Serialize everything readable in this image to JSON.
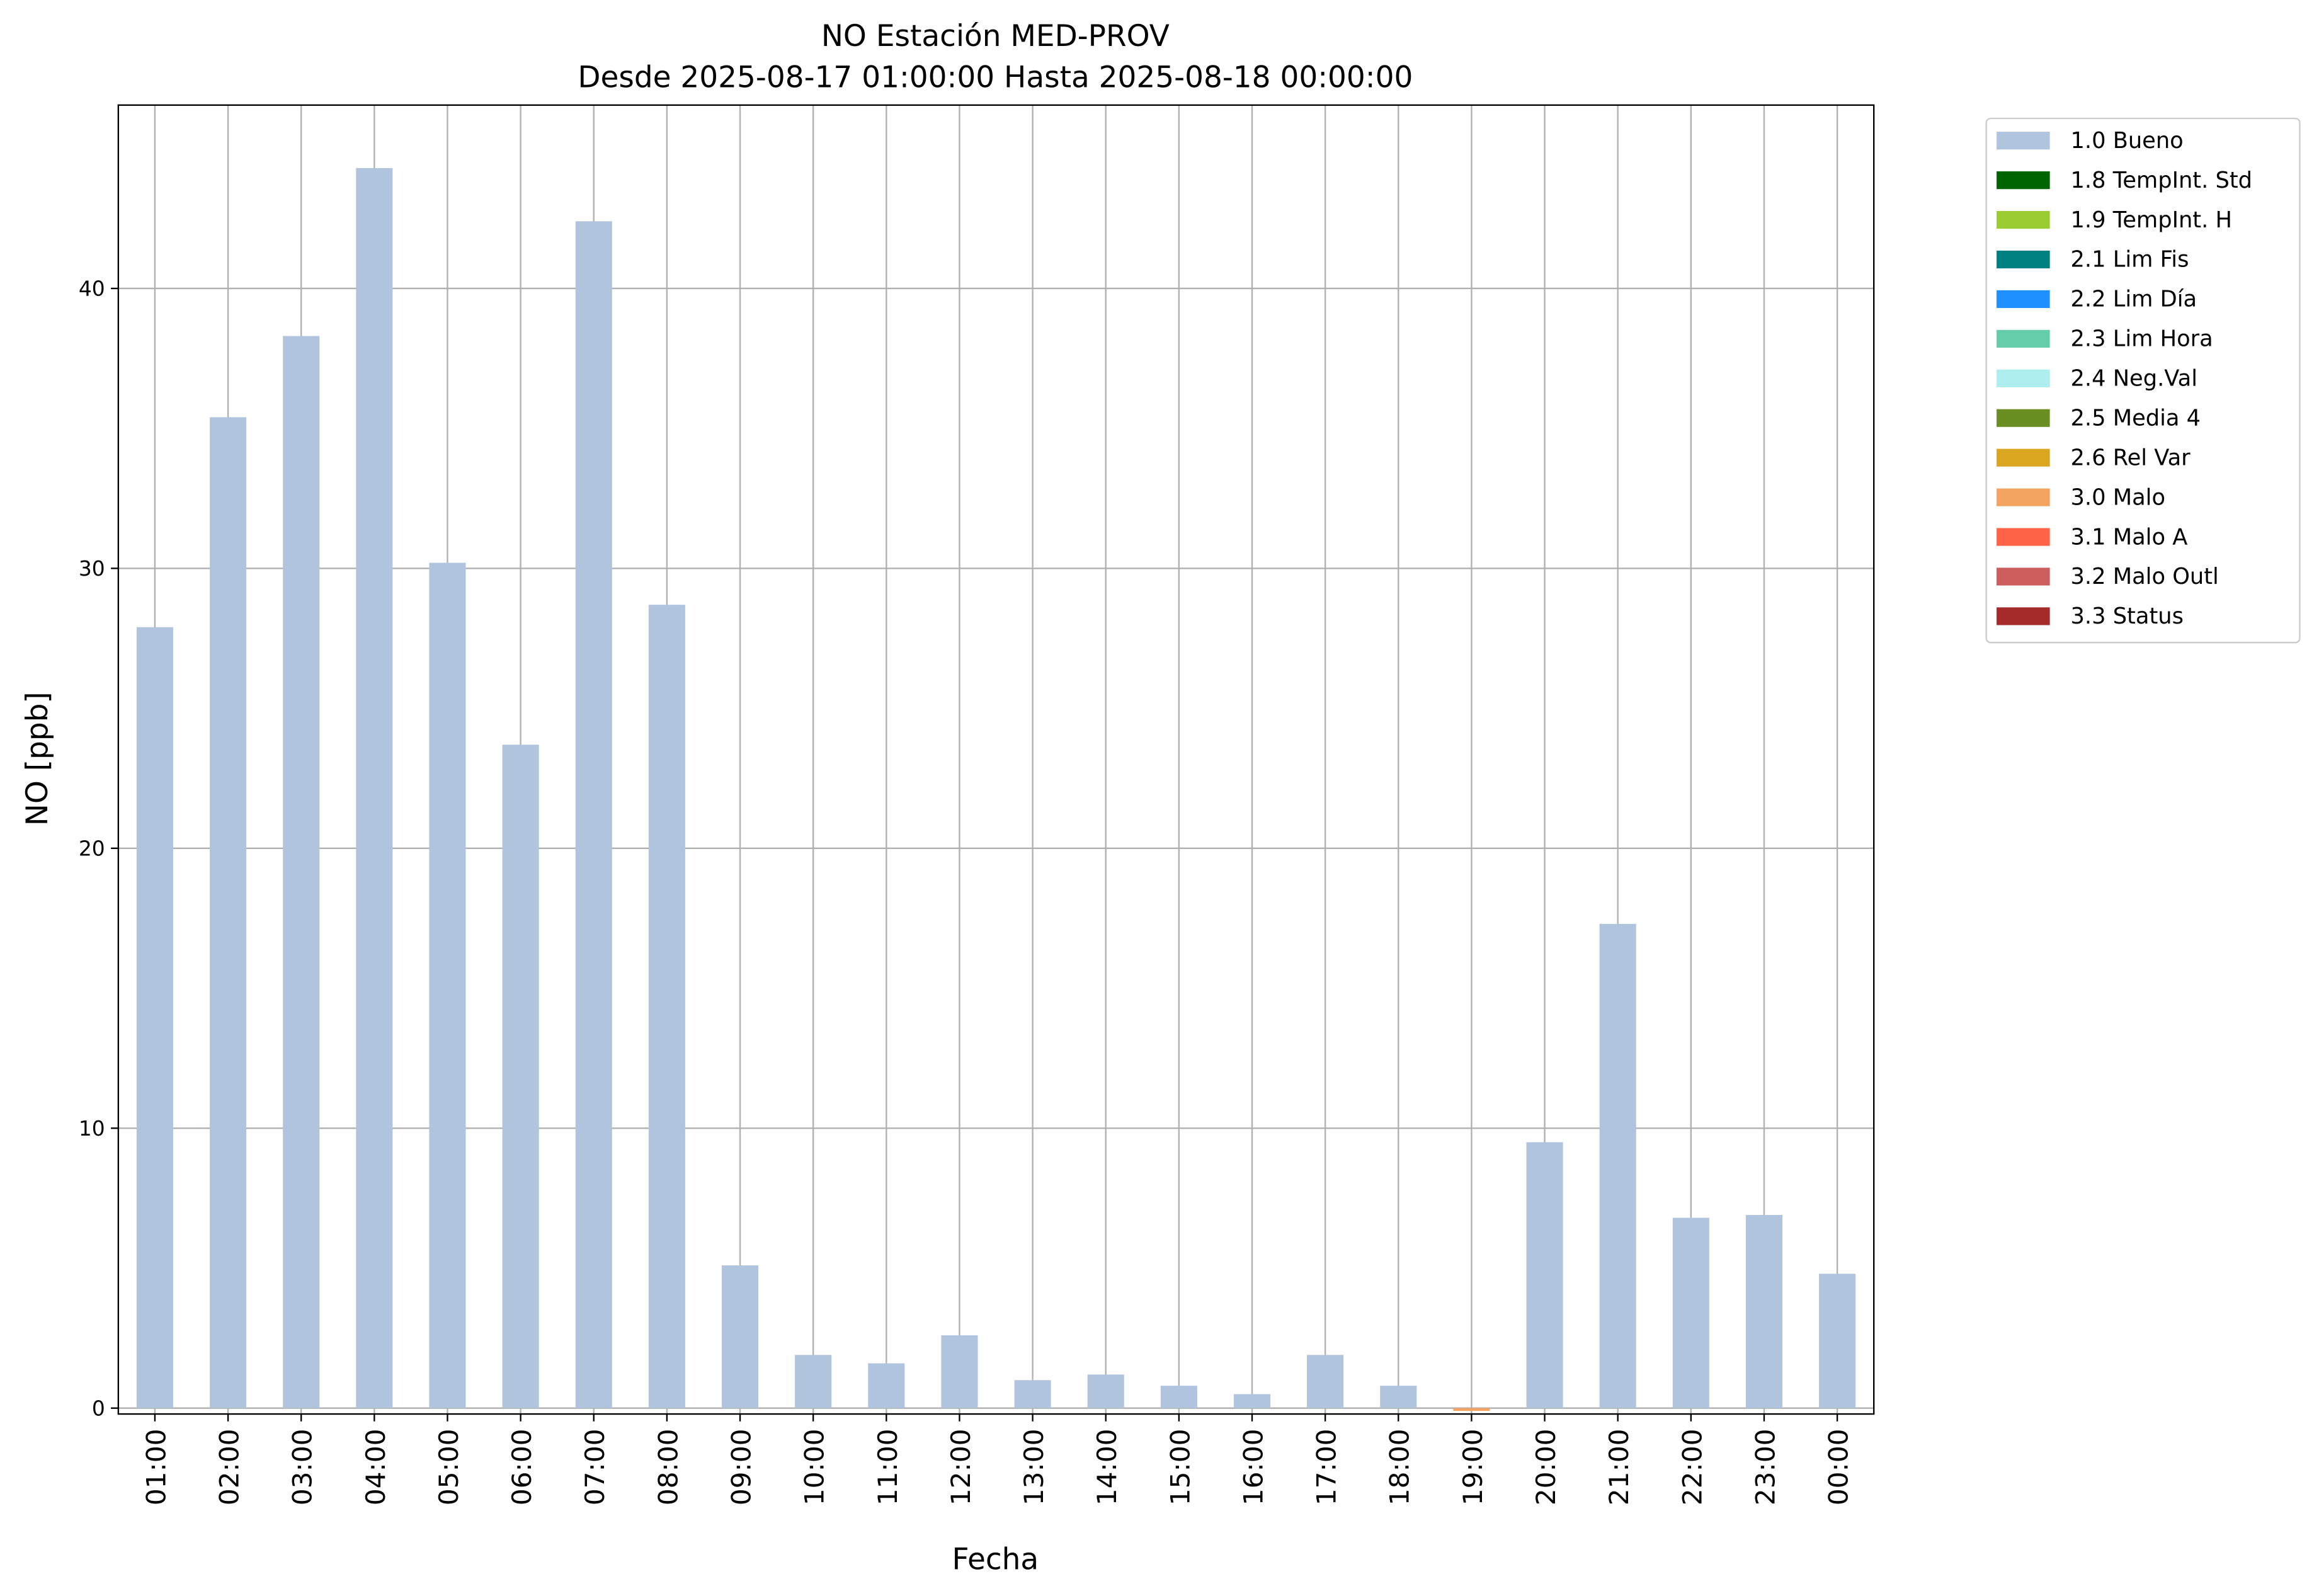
{
  "chart_data": {
    "type": "stacked_bar",
    "title": "NO Estación MED-PROV",
    "subtitle": "Desde 2025-08-17 01:00:00 Hasta 2025-08-18 00:00:00",
    "x_label": "Fecha",
    "y_label": "NO [ppb]",
    "categories": [
      "01:00",
      "02:00",
      "03:00",
      "04:00",
      "05:00",
      "06:00",
      "07:00",
      "08:00",
      "09:00",
      "10:00",
      "11:00",
      "12:00",
      "13:00",
      "14:00",
      "15:00",
      "16:00",
      "17:00",
      "18:00",
      "19:00",
      "20:00",
      "21:00",
      "22:00",
      "23:00",
      "00:00"
    ],
    "series": [
      {
        "name": "1.0 Bueno",
        "color": "#b0c4de",
        "values": [
          27.9,
          35.4,
          38.3,
          44.3,
          30.2,
          23.7,
          42.4,
          28.7,
          5.1,
          1.9,
          1.6,
          2.6,
          1.0,
          1.2,
          0.8,
          0.5,
          1.9,
          0.8,
          null,
          9.5,
          17.3,
          6.8,
          6.9,
          4.8
        ]
      },
      {
        "name": "1.8 TempInt. Std",
        "color": "#006400",
        "values": [
          null,
          null,
          null,
          null,
          null,
          null,
          null,
          null,
          null,
          null,
          null,
          null,
          null,
          null,
          null,
          null,
          null,
          null,
          null,
          null,
          null,
          null,
          null,
          null
        ]
      },
      {
        "name": "1.9 TempInt. H",
        "color": "#9acd32",
        "values": [
          null,
          null,
          null,
          null,
          null,
          null,
          null,
          null,
          null,
          null,
          null,
          null,
          null,
          null,
          null,
          null,
          null,
          null,
          null,
          null,
          null,
          null,
          null,
          null
        ]
      },
      {
        "name": "2.1 Lim Fis",
        "color": "#008080",
        "values": [
          null,
          null,
          null,
          null,
          null,
          null,
          null,
          null,
          null,
          null,
          null,
          null,
          null,
          null,
          null,
          null,
          null,
          null,
          null,
          null,
          null,
          null,
          null,
          null
        ]
      },
      {
        "name": "2.2 Lim Día",
        "color": "#1e90ff",
        "values": [
          null,
          null,
          null,
          null,
          null,
          null,
          null,
          null,
          null,
          null,
          null,
          null,
          null,
          null,
          null,
          null,
          null,
          null,
          null,
          null,
          null,
          null,
          null,
          null
        ]
      },
      {
        "name": "2.3 Lim Hora",
        "color": "#66cdaa",
        "values": [
          null,
          null,
          null,
          null,
          null,
          null,
          null,
          null,
          null,
          null,
          null,
          null,
          null,
          null,
          null,
          null,
          null,
          null,
          null,
          null,
          null,
          null,
          null,
          null
        ]
      },
      {
        "name": "2.4 Neg.Val",
        "color": "#afeeee",
        "values": [
          null,
          null,
          null,
          null,
          null,
          null,
          null,
          null,
          null,
          null,
          null,
          null,
          null,
          null,
          null,
          null,
          null,
          null,
          null,
          null,
          null,
          null,
          null,
          null
        ]
      },
      {
        "name": "2.5 Media 4",
        "color": "#6b8e23",
        "values": [
          null,
          null,
          null,
          null,
          null,
          null,
          null,
          null,
          null,
          null,
          null,
          null,
          null,
          null,
          null,
          null,
          null,
          null,
          null,
          null,
          null,
          null,
          null,
          null
        ]
      },
      {
        "name": "2.6 Rel Var",
        "color": "#daa520",
        "values": [
          null,
          null,
          null,
          null,
          null,
          null,
          null,
          null,
          null,
          null,
          null,
          null,
          null,
          null,
          null,
          null,
          null,
          null,
          null,
          null,
          null,
          null,
          null,
          null
        ]
      },
      {
        "name": "3.0 Malo",
        "color": "#f4a460",
        "values": [
          null,
          null,
          null,
          null,
          null,
          null,
          null,
          null,
          null,
          null,
          null,
          null,
          null,
          null,
          null,
          null,
          null,
          null,
          -0.1,
          null,
          null,
          null,
          null,
          null
        ]
      },
      {
        "name": "3.1 Malo A",
        "color": "#ff6347",
        "values": [
          null,
          null,
          null,
          null,
          null,
          null,
          null,
          null,
          null,
          null,
          null,
          null,
          null,
          null,
          null,
          null,
          null,
          null,
          null,
          null,
          null,
          null,
          null,
          null
        ]
      },
      {
        "name": "3.2 Malo Outl",
        "color": "#cd5c5c",
        "values": [
          null,
          null,
          null,
          null,
          null,
          null,
          null,
          null,
          null,
          null,
          null,
          null,
          null,
          null,
          null,
          null,
          null,
          null,
          null,
          null,
          null,
          null,
          null,
          null
        ]
      },
      {
        "name": "3.3 Status",
        "color": "#a52a2a",
        "values": [
          null,
          null,
          null,
          null,
          null,
          null,
          null,
          null,
          null,
          null,
          null,
          null,
          null,
          null,
          null,
          null,
          null,
          null,
          null,
          null,
          null,
          null,
          null,
          null
        ]
      }
    ],
    "ylim": [
      -0.21,
      46.55
    ],
    "yticks": [
      0,
      10,
      20,
      30,
      40
    ],
    "grid": true,
    "legend": "outside-right"
  }
}
